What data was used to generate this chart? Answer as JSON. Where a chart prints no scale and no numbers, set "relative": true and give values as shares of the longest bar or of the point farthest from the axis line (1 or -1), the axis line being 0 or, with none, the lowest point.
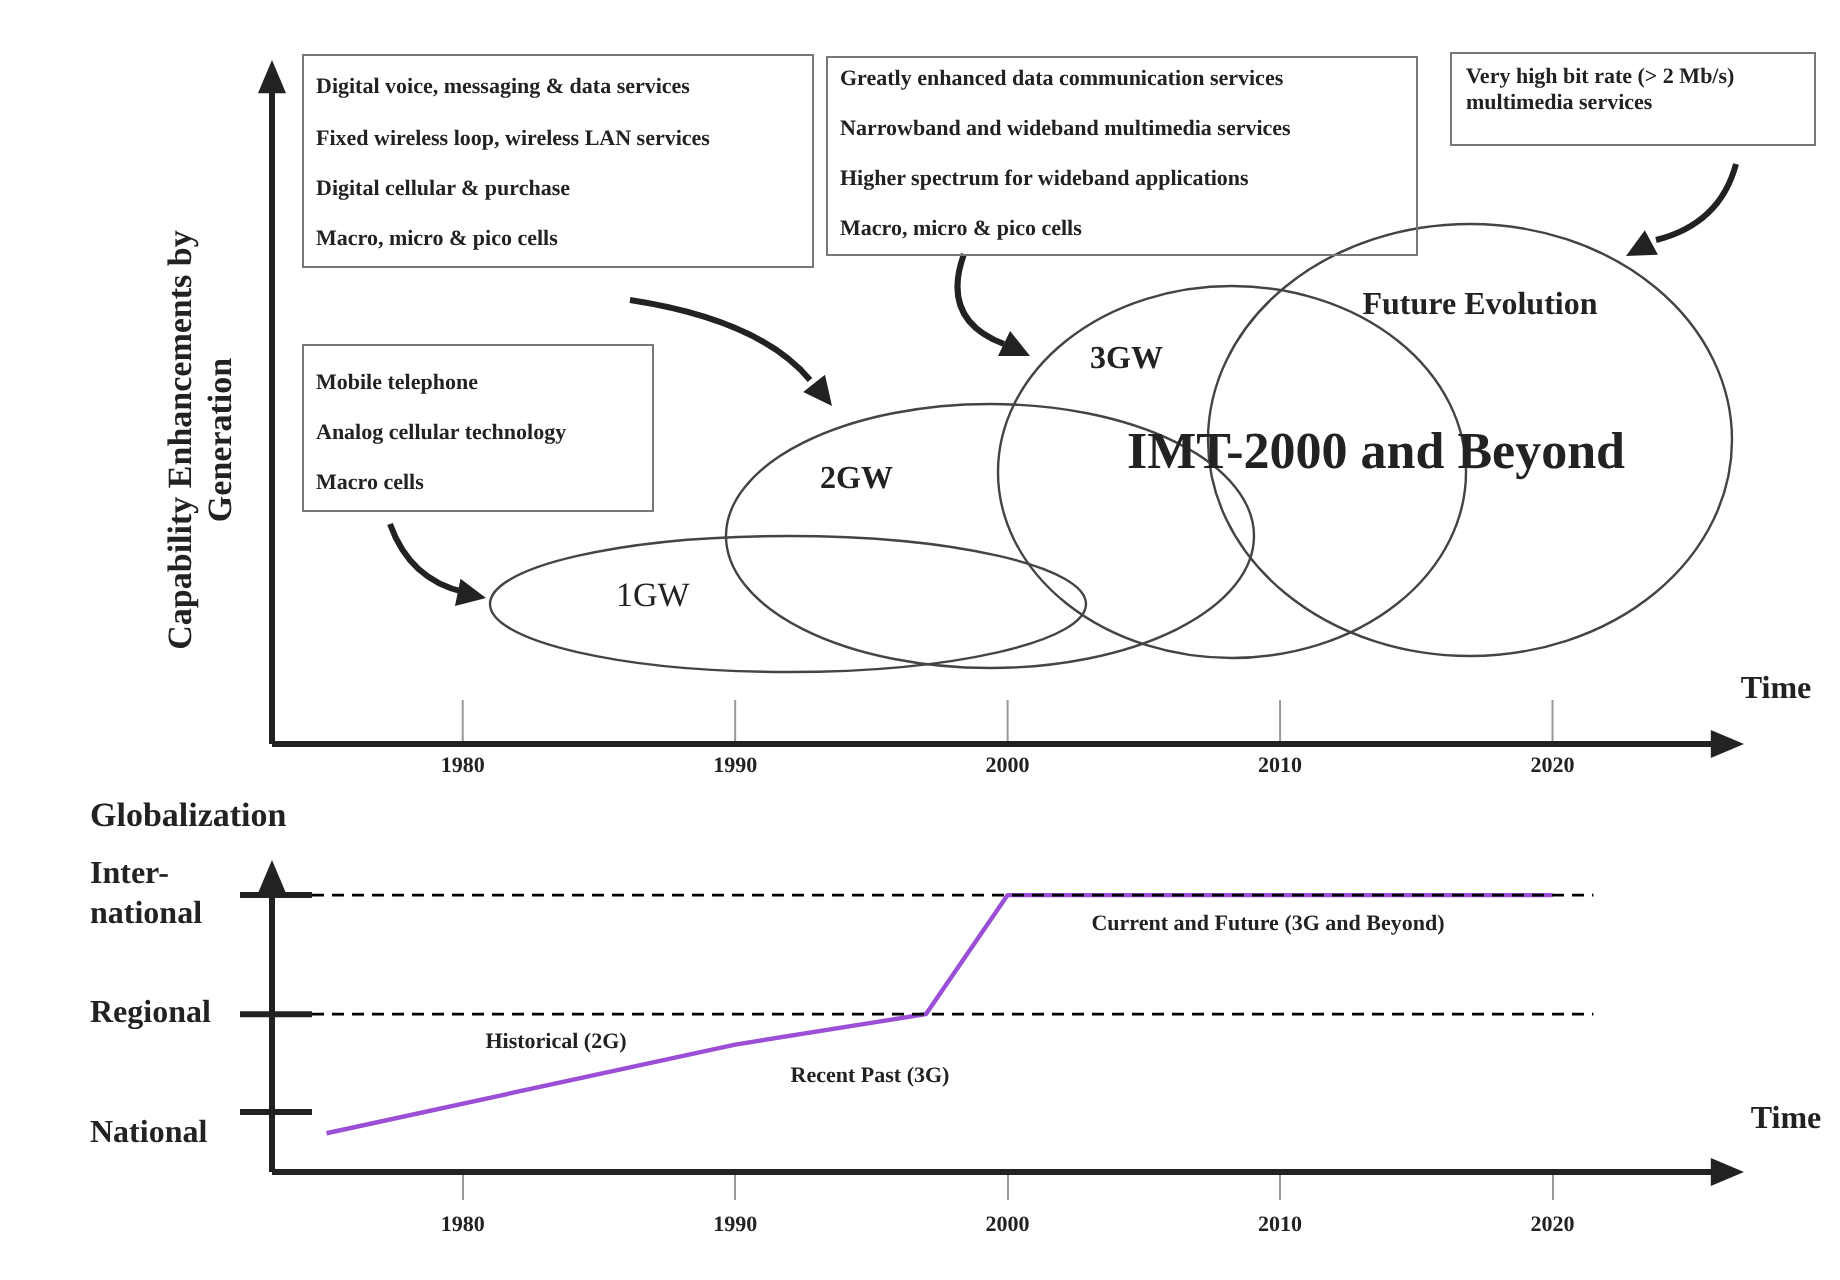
{
  "chart_data": [
    {
      "type": "other",
      "xlabel": "Time",
      "ylabel": "Capability Enhancements by Generation",
      "annotations": [
        "Digital voice, messaging & data services",
        "Fixed wireless loop, wireless LAN services",
        "Digital cellular & purchase",
        "Macro, micro & pico cells",
        "Greatly enhanced data communication services",
        "Narrowband and wideband multimedia services",
        "Higher spectrum for wideband applications",
        "Macro, micro & pico cells",
        "Very high bit rate (> 2 Mb/s) multimedia services",
        "Mobile telephone",
        "Analog cellular technology",
        "Macro cells",
        "1GW",
        "2GW",
        "3GW",
        "Future Evolution",
        "IMT-2000 and Beyond"
      ]
    },
    {
      "type": "line",
      "xlabel": "Time",
      "ylabel": "Globalization",
      "relative": true,
      "xlim": [
        1973,
        2026
      ],
      "xticks": [
        1980,
        1990,
        2000,
        2010,
        2020
      ],
      "x2lim": [
        1973,
        2026
      ],
      "x2ticks": [
        1980,
        1990,
        2000,
        2010,
        2020
      ],
      "x": [
        1975,
        1990,
        1997,
        2000,
        2020
      ],
      "marker": "none",
      "series": [
        {
          "color": "#9b4fd6",
          "values": [
            0.14,
            0.46,
            0.57,
            1,
            1
          ]
        }
      ],
      "ref_lines": [
        {
          "axis": "y",
          "value": 0.57,
          "label": "Regional",
          "color": "#000000",
          "line_style": "dashed"
        },
        {
          "axis": "y",
          "value": 1,
          "label": "Inter-national",
          "color": "#000000",
          "line_style": "dashed"
        }
      ],
      "annotations": [
        "National",
        "Historical (2G)",
        "Recent Past (3G)",
        "Current and Future (3G and Beyond)"
      ]
    }
  ]
}
